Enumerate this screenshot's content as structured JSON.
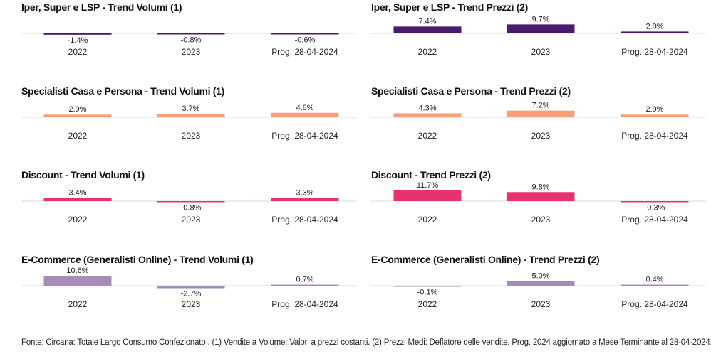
{
  "colors": {
    "iper": "#4a1a6b",
    "specialisti": "#f9a07a",
    "discount": "#e8326f",
    "ecommerce": "#a78bb8",
    "axis": "#d8d8d8",
    "text": "#222222"
  },
  "footnote": "Fonte: Circana: Totale Largo Consumo Confezionato . (1) Vendite a Volume: Valori a prezzi costanti. (2) Prezzi Medi: Deflatore delle vendite. Prog. 2024 aggiornato a Mese Terminante al 28-04-2024.",
  "chart_data": [
    {
      "type": "bar",
      "title": "Iper, Super e LSP - Trend Volumi (1)",
      "categories": [
        "2022",
        "2023",
        "Prog. 28-04-2024"
      ],
      "values": [
        -1.4,
        -0.8,
        -0.6
      ],
      "labels": [
        "-1.4%",
        "-0.8%",
        "-0.6%"
      ],
      "color_key": "iper"
    },
    {
      "type": "bar",
      "title": "Iper, Super e LSP - Trend Prezzi (2)",
      "categories": [
        "2022",
        "2023",
        "Prog. 28-04-2024"
      ],
      "values": [
        7.4,
        9.7,
        2.0
      ],
      "labels": [
        "7.4%",
        "9.7%",
        "2.0%"
      ],
      "color_key": "iper"
    },
    {
      "type": "bar",
      "title": "Specialisti Casa e Persona - Trend Volumi (1)",
      "categories": [
        "2022",
        "2023",
        "Prog. 28-04-2024"
      ],
      "values": [
        2.9,
        3.7,
        4.8
      ],
      "labels": [
        "2.9%",
        "3.7%",
        "4.8%"
      ],
      "color_key": "specialisti"
    },
    {
      "type": "bar",
      "title": "Specialisti Casa e Persona - Trend Prezzi (2)",
      "categories": [
        "2022",
        "2023",
        "Prog. 28-04-2024"
      ],
      "values": [
        4.3,
        7.2,
        2.9
      ],
      "labels": [
        "4.3%",
        "7.2%",
        "2.9%"
      ],
      "color_key": "specialisti"
    },
    {
      "type": "bar",
      "title": "Discount - Trend Volumi (1)",
      "categories": [
        "2022",
        "2023",
        "Prog. 28-04-2024"
      ],
      "values": [
        3.4,
        -0.8,
        3.3
      ],
      "labels": [
        "3.4%",
        "-0.8%",
        "3.3%"
      ],
      "color_key": "discount"
    },
    {
      "type": "bar",
      "title": "Discount - Trend Prezzi (2)",
      "categories": [
        "2022",
        "2023",
        "Prog. 28-04-2024"
      ],
      "values": [
        11.7,
        9.8,
        -0.3
      ],
      "labels": [
        "11.7%",
        "9.8%",
        "-0.3%"
      ],
      "color_key": "discount"
    },
    {
      "type": "bar",
      "title": "E-Commerce (Generalisti Online) - Trend Volumi (1)",
      "categories": [
        "2022",
        "2023",
        "Prog. 28-04-2024"
      ],
      "values": [
        10.6,
        -2.7,
        0.7
      ],
      "labels": [
        "10.6%",
        "-2.7%",
        "0.7%"
      ],
      "color_key": "ecommerce"
    },
    {
      "type": "bar",
      "title": "E-Commerce (Generalisti Online) - Trend Prezzi (2)",
      "categories": [
        "2022",
        "2023",
        "Prog. 28-04-2024"
      ],
      "values": [
        -0.1,
        5.0,
        0.4
      ],
      "labels": [
        "-0.1%",
        "5.0%",
        "0.4%"
      ],
      "color_key": "ecommerce"
    }
  ]
}
